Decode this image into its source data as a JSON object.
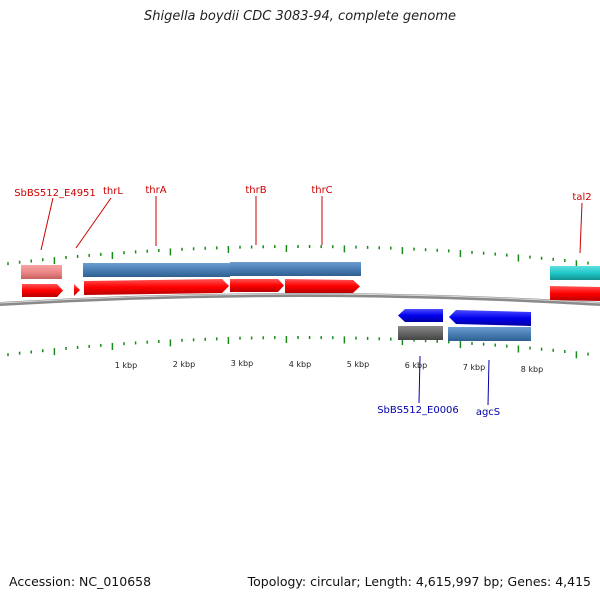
{
  "title": "Shigella boydii CDC 3083-94, complete genome",
  "footer": {
    "accession": "Accession: NC_010658",
    "summary": "Topology: circular; Length: 4,615,997 bp; Genes: 4,415"
  },
  "colors": {
    "forward_gene": "#ff0000",
    "forward_cds": "#4a7fb5",
    "reverse_gene": "#0000ee",
    "reverse_cds": "#4a7fb5",
    "pseudo_cds": "#ee8888",
    "rna": "#20c8c8",
    "other": "#666666",
    "forward_label": "#cc0000",
    "reverse_label": "#0000aa",
    "tick": "#1a8a1a"
  },
  "scale": {
    "labels": [
      "1 kbp",
      "2 kbp",
      "3 kbp",
      "4 kbp",
      "5 kbp",
      "6 kbp",
      "7 kbp",
      "8 kbp"
    ]
  },
  "forward_labels": [
    "SbBS512_E4951",
    "thrL",
    "thrA",
    "thrB",
    "thrC",
    "tal2"
  ],
  "reverse_labels": [
    "SbBS512_E0006",
    "agcS"
  ]
}
